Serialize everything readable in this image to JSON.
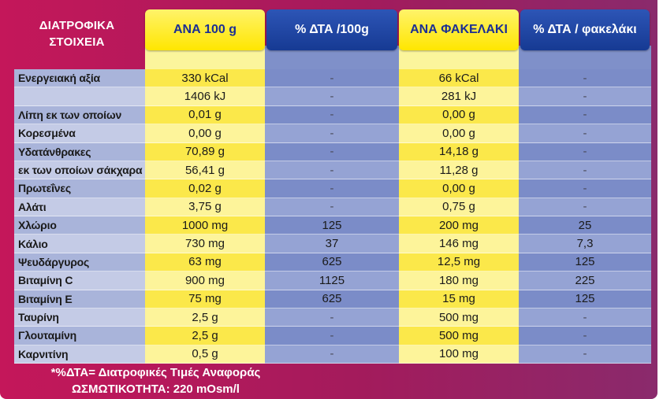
{
  "header": {
    "label": "ΔΙΑΤΡΟΦΙΚΑ ΣΤΟΙΧΕΙΑ",
    "columns": [
      "ΑΝΑ 100 g",
      "% ΔΤΑ /100g",
      "ΑΝΑ ΦΑΚΕΛΑΚΙ",
      "% ΔΤΑ / φακελάκι"
    ]
  },
  "rows": [
    {
      "label": "Ενεργειακή αξία",
      "a": "330 kCal",
      "b": "-",
      "c": "66 kCal",
      "d": "-"
    },
    {
      "label": "",
      "a": "1406 kJ",
      "b": "-",
      "c": "281 kJ",
      "d": "-"
    },
    {
      "label": "Λίπη εκ των οποίων",
      "a": "0,01 g",
      "b": "-",
      "c": "0,00 g",
      "d": "-"
    },
    {
      "label": "Κορεσμένα",
      "a": "0,00 g",
      "b": "-",
      "c": "0,00 g",
      "d": "-"
    },
    {
      "label": "Υδατάνθρακες",
      "a": "70,89 g",
      "b": "-",
      "c": "14,18 g",
      "d": "-"
    },
    {
      "label": "εκ των οποίων σάκχαρα",
      "a": "56,41 g",
      "b": "-",
      "c": "11,28 g",
      "d": "-"
    },
    {
      "label": "Πρωτεΐνες",
      "a": "0,02 g",
      "b": "-",
      "c": "0,00 g",
      "d": "-"
    },
    {
      "label": "Αλάτι",
      "a": "3,75 g",
      "b": "-",
      "c": "0,75 g",
      "d": "-"
    },
    {
      "label": "Χλώριο",
      "a": "1000 mg",
      "b": "125",
      "c": "200 mg",
      "d": "25"
    },
    {
      "label": "Κάλιο",
      "a": "730 mg",
      "b": "37",
      "c": "146 mg",
      "d": "7,3"
    },
    {
      "label": "Ψευδάργυρος",
      "a": "63 mg",
      "b": "625",
      "c": "12,5 mg",
      "d": "125"
    },
    {
      "label": "Βιταμίνη C",
      "a": "900 mg",
      "b": "1125",
      "c": "180 mg",
      "d": "225"
    },
    {
      "label": "Βιταμίνη E",
      "a": "75 mg",
      "b": "625",
      "c": "15 mg",
      "d": "125"
    },
    {
      "label": "Ταυρίνη",
      "a": "2,5 g",
      "b": "-",
      "c": "500 mg",
      "d": "-"
    },
    {
      "label": "Γλουταμίνη",
      "a": "2,5 g",
      "b": "-",
      "c": "500 mg",
      "d": "-"
    },
    {
      "label": "Καρνιτίνη",
      "a": "0,5 g",
      "b": "-",
      "c": "100 mg",
      "d": "-"
    }
  ],
  "footer": {
    "note": "*%ΔΤΑ= Διατροφικές Τιμές Αναφοράς",
    "osmolality": "ΩΣΜΩΤΙΚΟΤΗΤΑ: 220 mOsm/l"
  }
}
